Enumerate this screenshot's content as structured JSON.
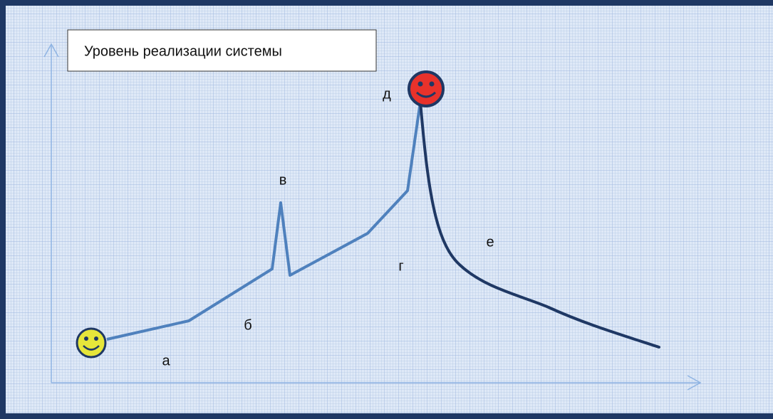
{
  "title": "Уровень реализации системы",
  "labels": [
    "а",
    "б",
    "в",
    "г",
    "д",
    "е"
  ]
}
